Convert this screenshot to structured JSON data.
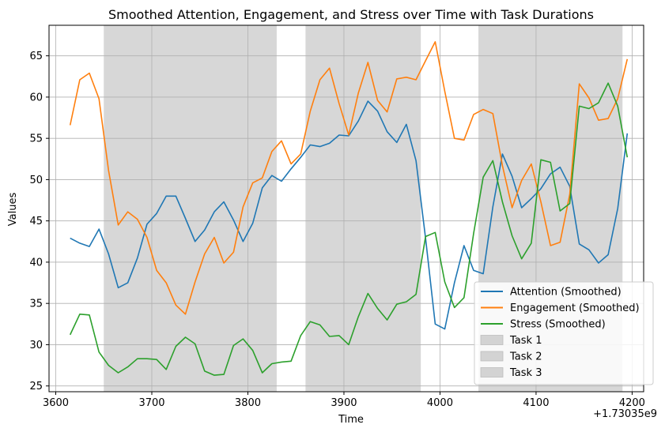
{
  "chart_data": {
    "type": "line",
    "title": "Smoothed Attention, Engagement, and Stress over Time with Task Durations",
    "xlabel": "Time",
    "ylabel": "Values",
    "x_offset_label": "+1.73035e9",
    "xlim": [
      3593,
      4212
    ],
    "ylim": [
      24.3,
      68.7
    ],
    "xticks": [
      3600,
      3700,
      3800,
      3900,
      4000,
      4100,
      4200
    ],
    "yticks": [
      25,
      30,
      35,
      40,
      45,
      50,
      55,
      60,
      65
    ],
    "grid": true,
    "legend_position": "lower-right",
    "tasks": [
      {
        "name": "Task 1",
        "start": 3650,
        "end": 3830,
        "color": "#d3d3d3"
      },
      {
        "name": "Task 2",
        "start": 3860,
        "end": 3980,
        "color": "#d3d3d3"
      },
      {
        "name": "Task 3",
        "start": 4040,
        "end": 4190,
        "color": "#d3d3d3"
      }
    ],
    "x": [
      3615,
      3625,
      3635,
      3645,
      3655,
      3665,
      3675,
      3685,
      3695,
      3705,
      3715,
      3725,
      3735,
      3745,
      3755,
      3765,
      3775,
      3785,
      3795,
      3805,
      3815,
      3825,
      3835,
      3845,
      3855,
      3865,
      3875,
      3885,
      3895,
      3905,
      3915,
      3925,
      3935,
      3945,
      3955,
      3965,
      3975,
      3985,
      3995,
      4005,
      4015,
      4025,
      4035,
      4045,
      4055,
      4065,
      4075,
      4085,
      4095,
      4105,
      4115,
      4125,
      4135,
      4145,
      4155,
      4165,
      4175,
      4185,
      4195
    ],
    "series": [
      {
        "name": "Attention (Smoothed)",
        "color": "#1f77b4",
        "values": [
          42.9,
          42.3,
          41.9,
          44.0,
          41.0,
          36.9,
          37.5,
          40.5,
          44.6,
          45.9,
          48.0,
          48.0,
          45.3,
          42.5,
          43.9,
          46.1,
          47.3,
          45.1,
          42.5,
          44.7,
          49.0,
          50.5,
          49.8,
          51.3,
          52.7,
          54.2,
          54.0,
          54.4,
          55.4,
          55.3,
          57.1,
          59.5,
          58.3,
          55.8,
          54.5,
          56.7,
          52.3,
          42.9,
          32.5,
          31.9,
          37.5,
          42.0,
          39.0,
          38.6,
          46.7,
          53.1,
          50.4,
          46.6,
          47.7,
          48.9,
          50.7,
          51.5,
          49.2,
          42.2,
          41.5,
          39.9,
          40.9,
          46.5,
          55.6
        ]
      },
      {
        "name": "Engagement (Smoothed)",
        "color": "#ff7f0e",
        "values": [
          56.6,
          62.1,
          62.9,
          59.8,
          51.1,
          44.5,
          46.1,
          45.2,
          43.0,
          39.0,
          37.5,
          34.8,
          33.7,
          37.6,
          41.0,
          43.0,
          39.9,
          41.2,
          46.7,
          49.6,
          50.2,
          53.4,
          54.7,
          51.9,
          53.1,
          58.3,
          62.1,
          63.5,
          59.2,
          55.4,
          60.5,
          64.2,
          59.6,
          58.2,
          62.2,
          62.4,
          62.1,
          64.4,
          66.7,
          60.7,
          55.0,
          54.8,
          57.9,
          58.5,
          58.0,
          51.7,
          46.6,
          49.9,
          51.9,
          47.3,
          42.0,
          42.4,
          48.2,
          61.6,
          59.9,
          57.2,
          57.4,
          59.8,
          64.6
        ]
      },
      {
        "name": "Stress (Smoothed)",
        "color": "#2ca02c",
        "values": [
          31.2,
          33.7,
          33.6,
          29.1,
          27.5,
          26.6,
          27.3,
          28.3,
          28.3,
          28.2,
          27.0,
          29.8,
          30.9,
          30.1,
          26.8,
          26.3,
          26.4,
          29.9,
          30.7,
          29.3,
          26.6,
          27.7,
          27.9,
          28.0,
          31.1,
          32.8,
          32.4,
          31.0,
          31.1,
          30.0,
          33.4,
          36.2,
          34.4,
          33.0,
          34.9,
          35.2,
          36.1,
          43.1,
          43.6,
          37.6,
          34.5,
          35.7,
          43.5,
          50.3,
          52.3,
          47.3,
          43.2,
          40.4,
          42.3,
          52.4,
          52.1,
          46.2,
          47.1,
          58.9,
          58.6,
          59.3,
          61.7,
          58.9,
          52.7
        ]
      }
    ],
    "legend": [
      "Attention (Smoothed)",
      "Engagement (Smoothed)",
      "Stress (Smoothed)",
      "Task 1",
      "Task 2",
      "Task 3"
    ]
  }
}
